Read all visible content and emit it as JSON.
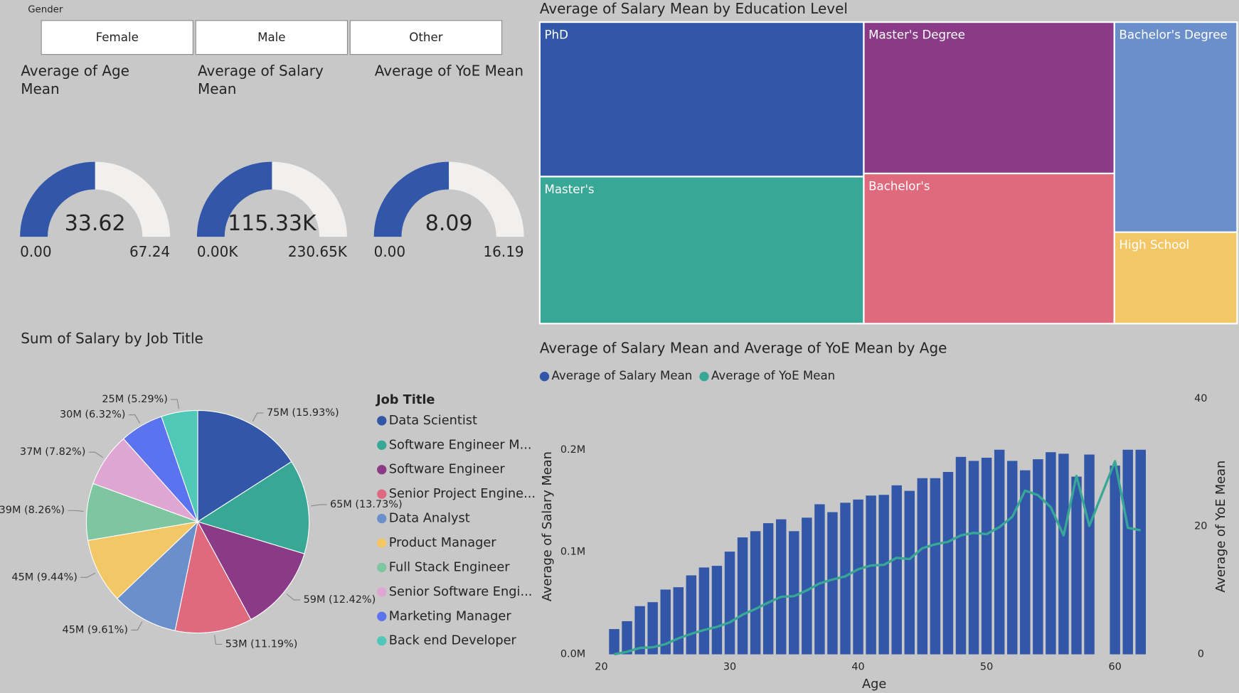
{
  "slicer": {
    "title": "Gender",
    "options": [
      "Female",
      "Male",
      "Other"
    ]
  },
  "chart_data": [
    {
      "type": "gauge",
      "title": "Average of Age Mean",
      "value": 33.62,
      "min": {
        "value": 0,
        "label": "0.00"
      },
      "max": 67.24,
      "color": "#3257a8",
      "track_color": "#f1f0ef"
    },
    {
      "type": "gauge",
      "title": "Average of Salary Mean",
      "value": 115330,
      "value_label": "115.33K",
      "min": {
        "value": 0,
        "label": "0.00K"
      },
      "max": {
        "value": 230650,
        "label": "230.65K"
      },
      "color": "#3257a8",
      "track_color": "#f1f0ef"
    },
    {
      "type": "gauge",
      "title": "Average of YoE Mean",
      "value": 8.09,
      "min": {
        "value": 0,
        "label": "0.00"
      },
      "max": 16.19,
      "color": "#3257a8",
      "track_color": "#f1f0ef"
    },
    {
      "type": "treemap",
      "title": "Average of Salary Mean by Education Level",
      "categories": [
        "PhD",
        "Master's",
        "Master's Degree",
        "Bachelor's",
        "Bachelor's Degree",
        "High School"
      ],
      "values": [
        165000,
        157000,
        125000,
        124000,
        85000,
        37000
      ],
      "colors": [
        "#3257a8",
        "#38a795",
        "#8b3a87",
        "#df6a7d",
        "#6a8fcb",
        "#f3c766"
      ]
    },
    {
      "type": "pie",
      "title": "Sum of Salary by Job Title",
      "legend_title": "Job Title",
      "categories": [
        "Data Scientist",
        "Software Engineer M...",
        "Software Engineer",
        "Senior Project Engine...",
        "Data Analyst",
        "Product Manager",
        "Full Stack Engineer",
        "Senior Software Engi...",
        "Marketing Manager",
        "Back end Developer"
      ],
      "values": [
        75.27,
        64.87,
        58.68,
        52.87,
        45.41,
        44.6,
        39.03,
        36.95,
        29.86,
        24.99
      ],
      "value_labels": [
        "75M (15.93%)",
        "65M (13.73%)",
        "59M (12.42%)",
        "53M (11.19%)",
        "45M (9.61%)",
        "45M (9.44%)",
        "39M (8.26%)",
        "37M (7.82%)",
        "30M (6.32%)",
        "25M (5.29%)"
      ],
      "colors": [
        "#3257a8",
        "#38a795",
        "#8b3a87",
        "#df6a7d",
        "#6a8fcb",
        "#f3c766",
        "#7dc6a0",
        "#e0a6d3",
        "#5b73ee",
        "#4fc8b8"
      ]
    },
    {
      "type": "combo",
      "title": "Average of Salary Mean and Average of YoE Mean by Age",
      "x_label": "Age",
      "y_label": "Average of Salary Mean",
      "y2_label": "Average of YoE Mean",
      "x": [
        21,
        22,
        23,
        24,
        25,
        26,
        27,
        28,
        29,
        30,
        31,
        32,
        33,
        34,
        35,
        36,
        37,
        38,
        39,
        40,
        41,
        42,
        43,
        44,
        45,
        46,
        47,
        48,
        49,
        50,
        51,
        52,
        53,
        54,
        55,
        56,
        57,
        58,
        60,
        61,
        62
      ],
      "series": [
        {
          "name": "Average of Salary Mean",
          "kind": "bar",
          "color": "#3257a8",
          "values": [
            24700,
            32400,
            47100,
            51000,
            63300,
            65600,
            77200,
            84900,
            86500,
            100400,
            114300,
            120400,
            128200,
            132000,
            120400,
            133600,
            146700,
            139000,
            148200,
            151300,
            155200,
            155900,
            165200,
            159800,
            172200,
            172200,
            178300,
            193000,
            189100,
            192200,
            200000,
            189100,
            179900,
            190700,
            197600,
            196100,
            173700,
            195300,
            184500,
            200000,
            200000
          ]
        },
        {
          "name": "Average of YoE Mean",
          "kind": "line",
          "axis": "y2",
          "color": "#38a795",
          "values": [
            0,
            0.4,
            1.0,
            1.1,
            1.6,
            2.5,
            3.2,
            3.8,
            4.3,
            5.0,
            6.2,
            7.1,
            8.1,
            9.0,
            9.1,
            10.0,
            11.1,
            11.7,
            12.2,
            13.3,
            13.9,
            14.0,
            15.1,
            14.9,
            16.6,
            17.2,
            17.6,
            18.6,
            19.0,
            18.8,
            19.9,
            21.5,
            25.6,
            24.9,
            23.0,
            18.6,
            27.9,
            20.1,
            30.2,
            19.8,
            19.4
          ]
        }
      ],
      "xlim": [
        20,
        62.5
      ],
      "xticks": [
        20,
        30,
        40,
        50,
        60
      ],
      "ylim": [
        0,
        250000
      ],
      "yticks": [
        {
          "value": 0,
          "label": "0.0M"
        },
        {
          "value": 100000,
          "label": "0.1M"
        },
        {
          "value": 200000,
          "label": "0.2M"
        }
      ],
      "y2lim": [
        0,
        40
      ],
      "y2ticks": [
        0,
        20,
        40
      ]
    }
  ]
}
